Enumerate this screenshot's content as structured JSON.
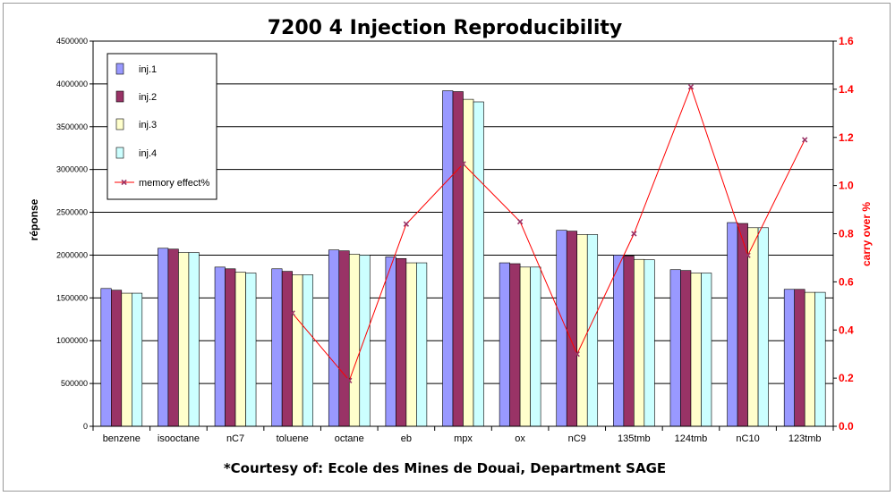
{
  "chart_data": {
    "type": "bar",
    "title": "7200 4 Injection Reproducibility",
    "footer": "*Courtesy of: Ecole des Mines de Douai, Department SAGE",
    "ylabel": "réponse",
    "y2label": "carry over %",
    "ylim": [
      0,
      4500000
    ],
    "y2lim": [
      0,
      1.6
    ],
    "yticks": [
      "0",
      "500000",
      "1000000",
      "1500000",
      "2000000",
      "2500000",
      "3000000",
      "3500000",
      "4000000",
      "4500000"
    ],
    "y2ticks": [
      "0.0",
      "0.2",
      "0.4",
      "0.6",
      "0.8",
      "1.0",
      "1.2",
      "1.4",
      "1.6"
    ],
    "grid": true,
    "legend_position": "top-left",
    "categories": [
      "benzene",
      "isooctane",
      "nC7",
      "toluene",
      "octane",
      "eb",
      "mpx",
      "ox",
      "nC9",
      "135tmb",
      "124tmb",
      "nC10",
      "123tmb"
    ],
    "series": [
      {
        "name": "inj.1",
        "color": "#9999ff",
        "values": [
          1610000,
          2080000,
          1860000,
          1840000,
          2060000,
          1980000,
          3920000,
          1910000,
          2290000,
          2000000,
          1830000,
          2380000,
          1600000
        ]
      },
      {
        "name": "inj.2",
        "color": "#993366",
        "values": [
          1590000,
          2070000,
          1840000,
          1810000,
          2050000,
          1960000,
          3910000,
          1900000,
          2280000,
          1990000,
          1820000,
          2370000,
          1600000
        ]
      },
      {
        "name": "inj.3",
        "color": "#ffffcc",
        "values": [
          1555000,
          2030000,
          1800000,
          1770000,
          2010000,
          1910000,
          3820000,
          1860000,
          2240000,
          1950000,
          1790000,
          2320000,
          1565000
        ]
      },
      {
        "name": "inj.4",
        "color": "#ccffff",
        "values": [
          1555000,
          2030000,
          1790000,
          1770000,
          2000000,
          1910000,
          3790000,
          1860000,
          2240000,
          1945000,
          1790000,
          2320000,
          1565000
        ]
      }
    ],
    "line_series": {
      "name": "memory effect%",
      "color": "#ff0000",
      "marker_color": "#993366",
      "axis": "right",
      "points": [
        {
          "category": "toluene",
          "value": 0.47
        },
        {
          "category": "octane",
          "value": 0.19
        },
        {
          "category": "eb",
          "value": 0.84
        },
        {
          "category": "mpx",
          "value": 1.09
        },
        {
          "category": "ox",
          "value": 0.85
        },
        {
          "category": "nC9",
          "value": 0.3
        },
        {
          "category": "135tmb",
          "value": 0.8
        },
        {
          "category": "124tmb",
          "value": 1.41
        },
        {
          "category": "nC10",
          "value": 0.71
        },
        {
          "category": "123tmb",
          "value": 1.19
        }
      ]
    }
  }
}
